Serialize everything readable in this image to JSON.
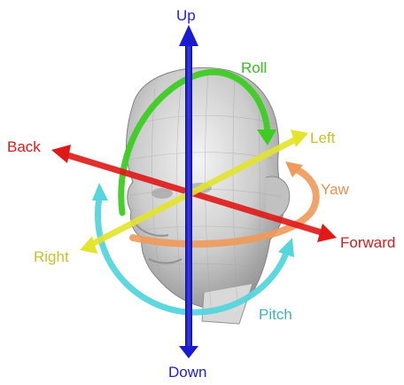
{
  "labels": {
    "up": "Up",
    "down": "Down",
    "back": "Back",
    "forward": "Forward",
    "left": "Left",
    "right": "Right",
    "roll": "Roll",
    "yaw": "Yaw",
    "pitch": "Pitch"
  },
  "colors": {
    "vertical_axis": "#1a1ad0",
    "longitudinal_axis": "#e01818",
    "lateral_axis": "#e4e42c",
    "roll": "#3ccc22",
    "yaw": "#ee9a5a",
    "pitch": "#55d6dc",
    "label_up_down": "#1f1fcf",
    "label_back_forward": "#d41c1c",
    "label_left_right": "#c9c22a",
    "label_roll": "#36c01f",
    "label_yaw": "#e89050",
    "label_pitch": "#3fb3b5"
  },
  "icons": [
    "head-model-icon"
  ]
}
